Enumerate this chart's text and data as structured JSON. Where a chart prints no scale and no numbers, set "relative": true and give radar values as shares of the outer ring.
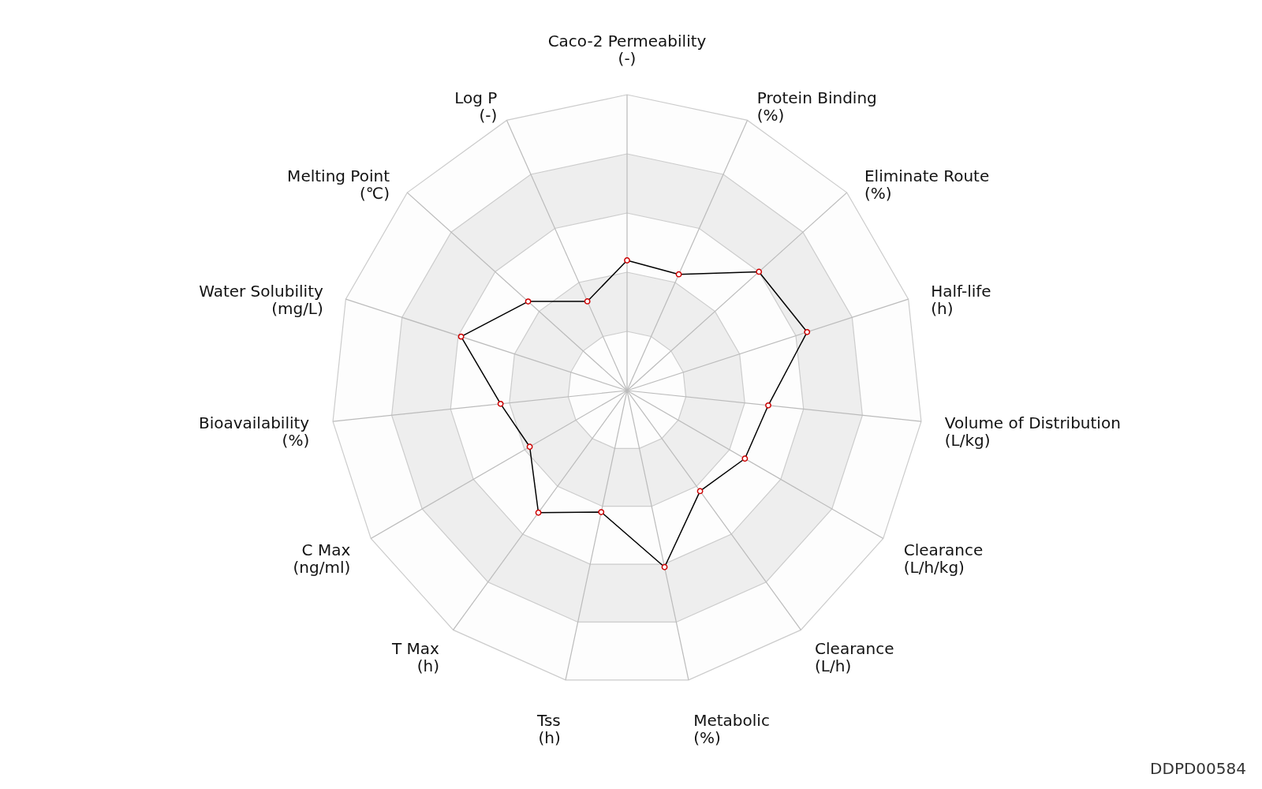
{
  "chart_data": {
    "type": "radar",
    "relative": true,
    "grid": true,
    "marker": "circle",
    "line_style": "solid",
    "categories": [
      "Caco-2 Permeability\n(-)",
      "Protein Binding\n(%)",
      "Eliminate Route\n(%)",
      "Half-life\n(h)",
      "Volume of Distribution\n(L/kg)",
      "Clearance\n(L/h/kg)",
      "Clearance\n(L/h)",
      "Metabolic\n(%)",
      "Tss\n(h)",
      "T Max\n(h)",
      "C Max\n(ng/ml)",
      "Bioavailability\n(%)",
      "Water Solubility\n(mg/L)",
      "Melting Point\n(℃)",
      "Log P\n(-)"
    ],
    "series": [
      {
        "color": "#000000",
        "values": [
          0.44,
          0.43,
          0.6,
          0.64,
          0.48,
          0.46,
          0.42,
          0.61,
          0.42,
          0.51,
          0.38,
          0.43,
          0.59,
          0.45,
          0.33
        ]
      }
    ],
    "annotations": [
      "DDPD00584"
    ]
  }
}
